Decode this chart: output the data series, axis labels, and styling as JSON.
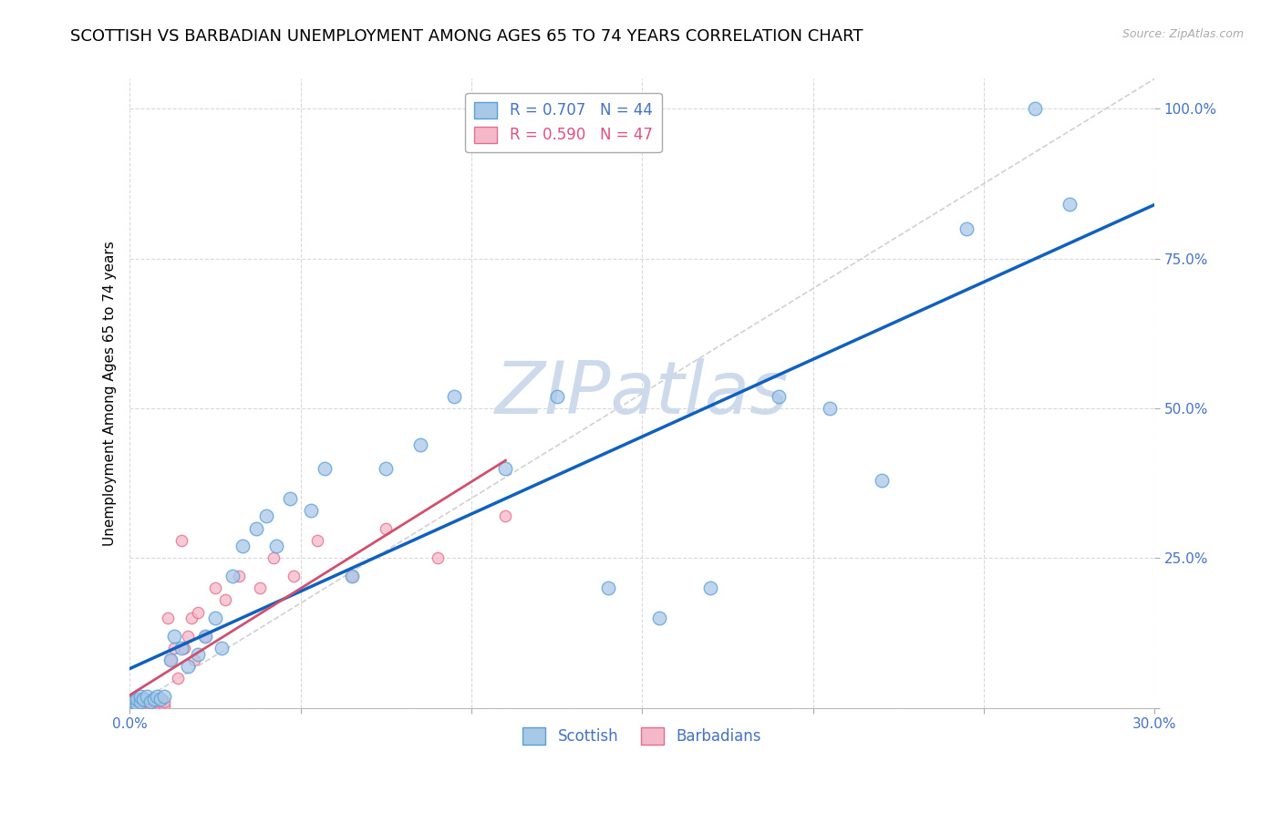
{
  "title": "SCOTTISH VS BARBADIAN UNEMPLOYMENT AMONG AGES 65 TO 74 YEARS CORRELATION CHART",
  "source": "Source: ZipAtlas.com",
  "ylabel": "Unemployment Among Ages 65 to 74 years",
  "xlim": [
    0.0,
    0.3
  ],
  "ylim": [
    0.0,
    1.05
  ],
  "xticks": [
    0.0,
    0.05,
    0.1,
    0.15,
    0.2,
    0.25,
    0.3
  ],
  "yticks": [
    0.0,
    0.25,
    0.5,
    0.75,
    1.0
  ],
  "ytick_labels": [
    "",
    "25.0%",
    "50.0%",
    "75.0%",
    "100.0%"
  ],
  "xtick_labels": [
    "0.0%",
    "",
    "",
    "",
    "",
    "",
    "30.0%"
  ],
  "scottish_color": "#a8c8e8",
  "barbadian_color": "#f5b8c8",
  "scottish_edge": "#5a9fd4",
  "barbadian_edge": "#e07090",
  "line_scottish_color": "#1060c0",
  "line_barbadian_color": "#d05070",
  "diagonal_color": "#cccccc",
  "R_scottish": 0.707,
  "N_scottish": 44,
  "R_barbadian": 0.59,
  "N_barbadian": 47,
  "scottish_x": [
    0.001,
    0.001,
    0.002,
    0.002,
    0.003,
    0.003,
    0.004,
    0.005,
    0.006,
    0.007,
    0.008,
    0.009,
    0.01,
    0.012,
    0.013,
    0.015,
    0.017,
    0.02,
    0.022,
    0.025,
    0.027,
    0.03,
    0.033,
    0.037,
    0.04,
    0.043,
    0.047,
    0.053,
    0.057,
    0.065,
    0.075,
    0.085,
    0.095,
    0.11,
    0.125,
    0.14,
    0.155,
    0.17,
    0.19,
    0.205,
    0.22,
    0.245,
    0.265,
    0.275
  ],
  "scottish_y": [
    0.005,
    0.01,
    0.008,
    0.015,
    0.01,
    0.02,
    0.015,
    0.02,
    0.01,
    0.015,
    0.02,
    0.015,
    0.02,
    0.08,
    0.12,
    0.1,
    0.07,
    0.09,
    0.12,
    0.15,
    0.1,
    0.22,
    0.27,
    0.3,
    0.32,
    0.27,
    0.35,
    0.33,
    0.4,
    0.22,
    0.4,
    0.44,
    0.52,
    0.4,
    0.52,
    0.2,
    0.15,
    0.2,
    0.52,
    0.5,
    0.38,
    0.8,
    1.0,
    0.84
  ],
  "barbadian_x": [
    0.001,
    0.001,
    0.001,
    0.002,
    0.002,
    0.002,
    0.003,
    0.003,
    0.003,
    0.004,
    0.004,
    0.004,
    0.005,
    0.005,
    0.005,
    0.006,
    0.006,
    0.007,
    0.007,
    0.008,
    0.008,
    0.009,
    0.009,
    0.01,
    0.01,
    0.011,
    0.012,
    0.013,
    0.014,
    0.015,
    0.016,
    0.017,
    0.018,
    0.019,
    0.02,
    0.022,
    0.025,
    0.028,
    0.032,
    0.038,
    0.042,
    0.048,
    0.055,
    0.065,
    0.075,
    0.09,
    0.11
  ],
  "barbadian_y": [
    0.005,
    0.01,
    0.015,
    0.005,
    0.01,
    0.015,
    0.005,
    0.01,
    0.015,
    0.005,
    0.01,
    0.015,
    0.005,
    0.01,
    0.015,
    0.005,
    0.01,
    0.005,
    0.01,
    0.005,
    0.01,
    0.005,
    0.01,
    0.005,
    0.01,
    0.15,
    0.08,
    0.1,
    0.05,
    0.28,
    0.1,
    0.12,
    0.15,
    0.08,
    0.16,
    0.12,
    0.2,
    0.18,
    0.22,
    0.2,
    0.25,
    0.22,
    0.28,
    0.22,
    0.3,
    0.25,
    0.32
  ],
  "scottish_size": 110,
  "barbadian_size": 80,
  "watermark_text": "ZIPatlas",
  "watermark_color": "#cddaeb",
  "title_fontsize": 13,
  "axis_label_fontsize": 11,
  "tick_fontsize": 11,
  "legend_fontsize": 12
}
